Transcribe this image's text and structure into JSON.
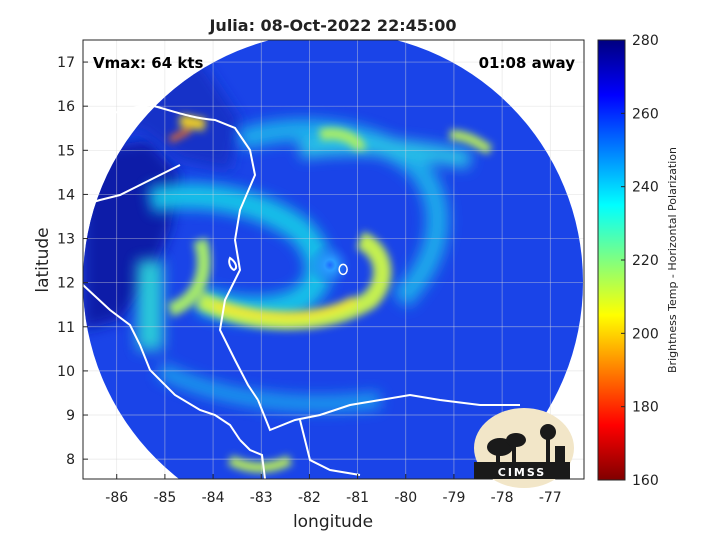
{
  "chart_data": {
    "type": "heatmap",
    "title": "Julia: 08-Oct-2022 22:45:00",
    "xlabel": "longitude",
    "ylabel": "latitude",
    "xlim": [
      -86.7,
      -76.3
    ],
    "ylim": [
      7.55,
      17.5
    ],
    "xticks": [
      -86,
      -85,
      -84,
      -83,
      -82,
      -81,
      -80,
      -79,
      -78,
      -77
    ],
    "yticks": [
      8,
      9,
      10,
      11,
      12,
      13,
      14,
      15,
      16,
      17
    ],
    "grid": true,
    "annotations": {
      "left": "Vmax: 64 kts",
      "right": "01:08 away"
    },
    "storm_center": {
      "lon": -81.3,
      "lat": 12.3
    },
    "colorbar": {
      "label": "Brightness Temp - Horizontal Polarization",
      "min": 160,
      "max": 280,
      "ticks": [
        160,
        180,
        200,
        220,
        240,
        260,
        280
      ],
      "colormap": "jet"
    },
    "logo": "CIMSS"
  },
  "colors": {
    "background_out_of_swath": "#ffffff",
    "coastline": "#ffffff",
    "grid": "#d8d8d8"
  },
  "icons": {
    "logo": "cimss-logo"
  }
}
